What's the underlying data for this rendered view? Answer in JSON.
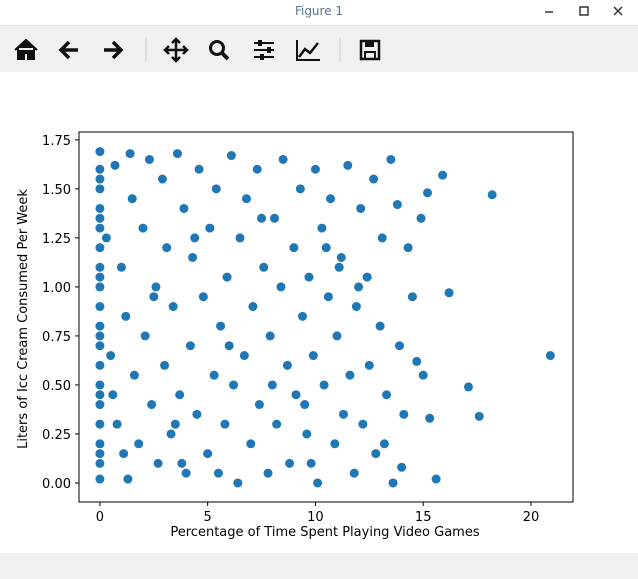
{
  "window": {
    "title": "Figure 1"
  },
  "chart_data": {
    "type": "scatter",
    "xlabel": "Percentage of Time Spent Playing Video Games",
    "ylabel": "Liters of Icc Cream Consumed Per Week",
    "color": "#1f77b4",
    "xlim": [
      -0.97,
      21.95
    ],
    "ylim": [
      -0.097,
      1.79
    ],
    "xticks": [
      0,
      5,
      10,
      15,
      20
    ],
    "yticks": [
      {
        "value": 0,
        "label": "0.00"
      },
      {
        "value": 0.25,
        "label": "0.25"
      },
      {
        "value": 0.5,
        "label": "0.50"
      },
      {
        "value": 0.75,
        "label": "0.75"
      },
      {
        "value": 1,
        "label": "1.00"
      },
      {
        "value": 1.25,
        "label": "1.25"
      },
      {
        "value": 1.5,
        "label": "1.50"
      },
      {
        "value": 1.75,
        "label": "1.75"
      }
    ],
    "x": [
      0,
      0,
      0,
      0,
      0,
      0,
      0,
      0,
      0,
      0,
      0,
      0,
      0,
      0,
      0,
      0,
      0,
      0,
      0,
      0,
      0,
      0,
      0,
      0,
      0.5,
      0.7,
      0.8,
      1.0,
      1.2,
      1.3,
      1.5,
      1.6,
      1.8,
      2.0,
      2.1,
      2.3,
      2.4,
      2.6,
      2.7,
      2.9,
      3.0,
      3.1,
      3.3,
      3.4,
      3.6,
      3.7,
      3.9,
      4.0,
      4.2,
      4.3,
      4.5,
      4.6,
      4.8,
      5.0,
      5.1,
      5.3,
      5.4,
      5.6,
      5.8,
      5.9,
      6.1,
      6.2,
      6.4,
      6.5,
      6.7,
      6.8,
      7.0,
      7.1,
      7.3,
      7.4,
      7.6,
      7.8,
      7.9,
      8.1,
      8.2,
      8.4,
      8.5,
      8.7,
      8.8,
      9.0,
      9.1,
      9.3,
      9.4,
      9.6,
      9.7,
      9.9,
      10.0,
      10.1,
      10.3,
      10.4,
      10.6,
      10.7,
      10.9,
      11.0,
      11.2,
      11.3,
      11.5,
      11.6,
      11.8,
      11.9,
      12.1,
      12.2,
      12.4,
      12.5,
      12.7,
      12.8,
      13.0,
      13.1,
      13.3,
      13.5,
      13.6,
      13.8,
      13.9,
      14.1,
      14.3,
      14.5,
      14.7,
      14.9,
      15.0,
      15.3,
      15.6,
      15.9,
      16.2,
      17.1,
      17.6,
      18.2,
      20.9,
      15.2,
      14.0,
      13.2,
      12.0,
      11.1,
      9.5,
      8.0,
      6.0,
      4.4,
      3.5,
      2.5,
      1.1,
      0.3,
      0.6,
      1.4,
      10.5,
      9.8,
      7.5,
      5.5,
      3.8
    ],
    "values": [
      0.02,
      0.1,
      0.2,
      0.3,
      0.4,
      0.5,
      0.6,
      0.7,
      0.8,
      0.9,
      1.0,
      1.1,
      1.2,
      1.3,
      1.4,
      1.5,
      1.6,
      1.69,
      0.15,
      0.45,
      0.75,
      1.05,
      1.35,
      1.55,
      0.65,
      1.62,
      0.3,
      1.1,
      0.85,
      0.02,
      1.45,
      0.55,
      0.2,
      1.3,
      0.75,
      1.65,
      0.4,
      1.0,
      0.1,
      1.55,
      0.6,
      1.2,
      0.25,
      0.9,
      1.68,
      0.45,
      1.4,
      0.05,
      0.7,
      1.15,
      0.35,
      1.6,
      0.95,
      0.15,
      1.3,
      0.55,
      1.5,
      0.8,
      0.3,
      1.05,
      1.67,
      0.5,
      0.0,
      1.25,
      0.65,
      1.45,
      0.2,
      0.9,
      1.6,
      0.4,
      1.1,
      0.05,
      0.75,
      1.35,
      0.3,
      1.0,
      1.65,
      0.6,
      0.1,
      1.2,
      0.45,
      1.5,
      0.85,
      0.25,
      1.05,
      0.65,
      1.6,
      0.0,
      1.3,
      0.5,
      0.95,
      1.45,
      0.2,
      0.75,
      1.15,
      0.35,
      1.62,
      0.55,
      0.05,
      0.9,
      1.4,
      0.3,
      1.05,
      0.6,
      1.55,
      0.15,
      0.8,
      1.25,
      0.45,
      1.65,
      0.0,
      1.42,
      0.7,
      0.35,
      1.2,
      0.95,
      0.62,
      1.35,
      0.55,
      0.33,
      0.02,
      1.57,
      0.97,
      0.49,
      0.34,
      1.47,
      0.65,
      1.48,
      0.08,
      0.2,
      1.0,
      1.1,
      0.4,
      0.5,
      0.7,
      1.25,
      0.3,
      0.95,
      0.15,
      1.25,
      0.45,
      1.68,
      1.2,
      0.1,
      1.35,
      0.05,
      0.1
    ]
  }
}
